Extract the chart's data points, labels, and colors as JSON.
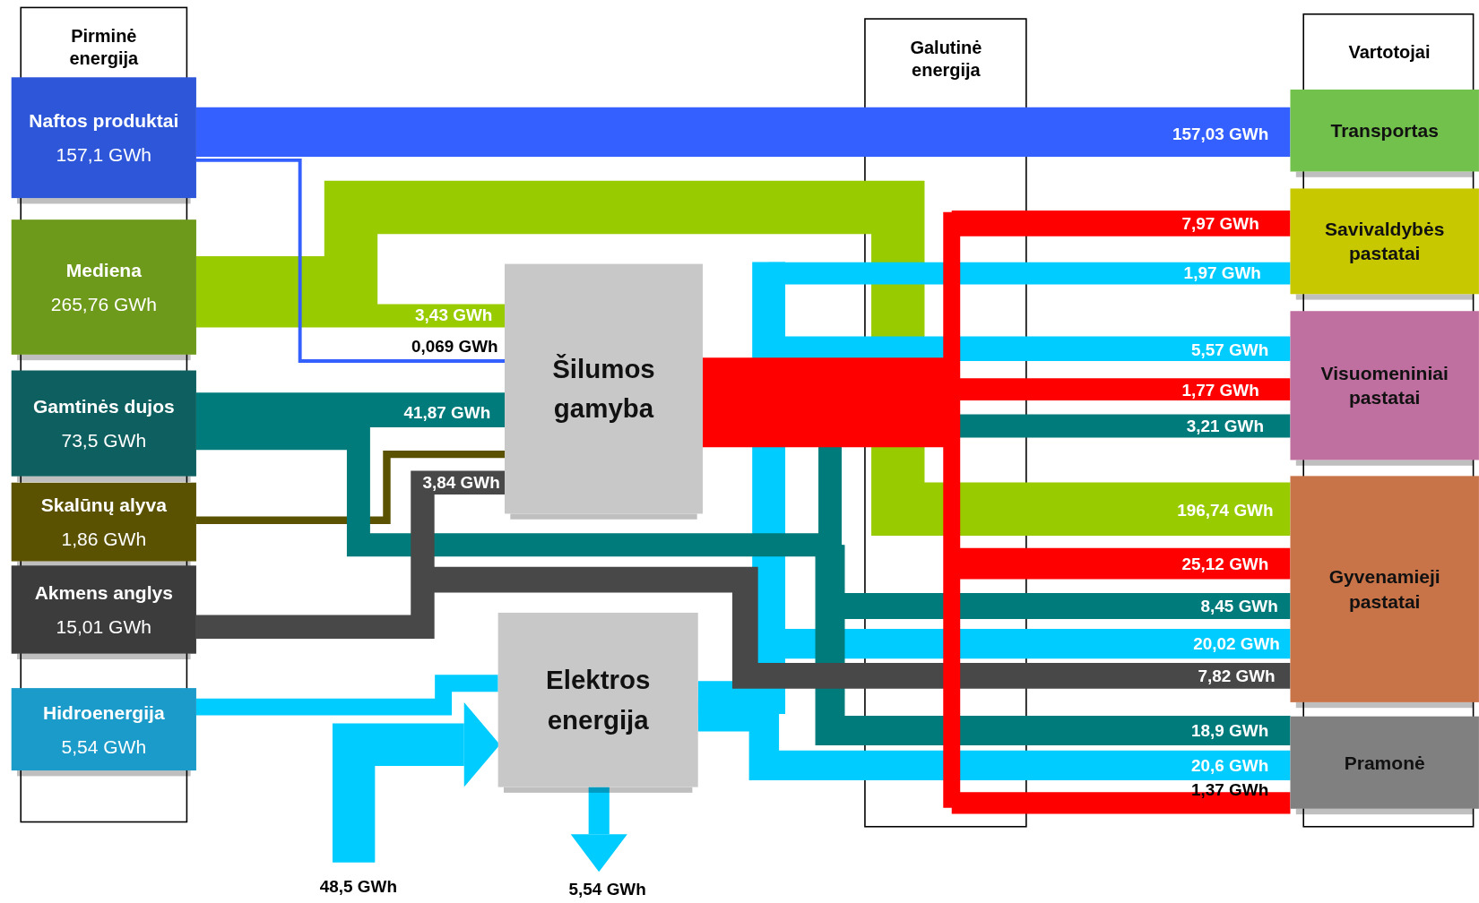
{
  "chart_data": {
    "type": "other",
    "annotations": [
      "Pirminė energija",
      "Galutinė energija",
      "Vartotojai",
      "48,5 GWh",
      "5,54 GWh"
    ],
    "categories": [
      "Naftos produktai",
      "Mediena",
      "Gamtinės dujos",
      "Skalūnų alyva",
      "Akmens anglys",
      "Hidroenergija",
      "Šilumos gamyba",
      "Elektros energija",
      "Transportas",
      "Savivaldybės pastatai",
      "Visuomeniniai pastatai",
      "Gyvenamieji pastatai",
      "Pramonė"
    ],
    "values": [
      157.1,
      265.76,
      73.5,
      1.86,
      15.01,
      5.54,
      null,
      null,
      null,
      null,
      null,
      null,
      null
    ],
    "value_labels": [
      "157,1 GWh",
      "265,76 GWh",
      "73,5 GWh",
      "1,86 GWh",
      "15,01 GWh",
      "5,54 GWh",
      null,
      null,
      null,
      null,
      null,
      null,
      null
    ],
    "colors": [
      "#2d56d9",
      "#6e9a1c",
      "#0e5f5f",
      "#5a5200",
      "#3c3c3c",
      "#1b9bc9",
      "#c8c8c8",
      "#c8c8c8",
      "#72c14c",
      "#c8c800",
      "#c070a0",
      "#c87348",
      "#808080"
    ],
    "series": [
      {
        "color": "#3360ff",
        "values": [
          null,
          null,
          null,
          null,
          null,
          null,
          0.069,
          null,
          157.03,
          null,
          null,
          null,
          null
        ],
        "value_labels": [
          null,
          null,
          null,
          null,
          null,
          null,
          "0,069 GWh",
          null,
          "157,03 GWh",
          null,
          null,
          null,
          null
        ]
      },
      {
        "color": "#99cc00",
        "values": [
          null,
          null,
          null,
          null,
          null,
          null,
          3.43,
          null,
          null,
          null,
          null,
          196.74,
          null
        ],
        "value_labels": [
          null,
          null,
          null,
          null,
          null,
          null,
          "3,43 GWh",
          null,
          null,
          null,
          null,
          "196,74 GWh",
          null
        ]
      },
      {
        "color": "#007b7b",
        "values": [
          null,
          null,
          null,
          null,
          null,
          null,
          41.87,
          null,
          null,
          null,
          3.21,
          8.45,
          18.9
        ],
        "value_labels": [
          null,
          null,
          null,
          null,
          null,
          null,
          "41,87 GWh",
          null,
          null,
          null,
          "3,21 GWh",
          "8,45 GWh",
          "18,9 GWh"
        ]
      },
      {
        "color": "#484848",
        "values": [
          null,
          null,
          null,
          null,
          null,
          null,
          3.84,
          null,
          null,
          null,
          null,
          7.82,
          null
        ],
        "value_labels": [
          null,
          null,
          null,
          null,
          null,
          null,
          "3,84 GWh",
          null,
          null,
          null,
          null,
          "7,82 GWh",
          null
        ]
      },
      {
        "color": "#ff0000",
        "values": [
          null,
          null,
          null,
          null,
          null,
          null,
          null,
          null,
          null,
          7.97,
          1.77,
          25.12,
          1.37
        ],
        "value_labels": [
          null,
          null,
          null,
          null,
          null,
          null,
          null,
          null,
          null,
          "7,97 GWh",
          "1,77 GWh",
          "25,12 GWh",
          "1,37 GWh"
        ]
      },
      {
        "color": "#00ccff",
        "values": [
          null,
          null,
          null,
          null,
          null,
          null,
          null,
          null,
          null,
          1.97,
          5.57,
          20.02,
          20.6
        ],
        "value_labels": [
          null,
          null,
          null,
          null,
          null,
          null,
          null,
          null,
          null,
          "1,97 GWh",
          "5,57 GWh",
          "20,02 GWh",
          "20,6 GWh"
        ]
      }
    ]
  }
}
